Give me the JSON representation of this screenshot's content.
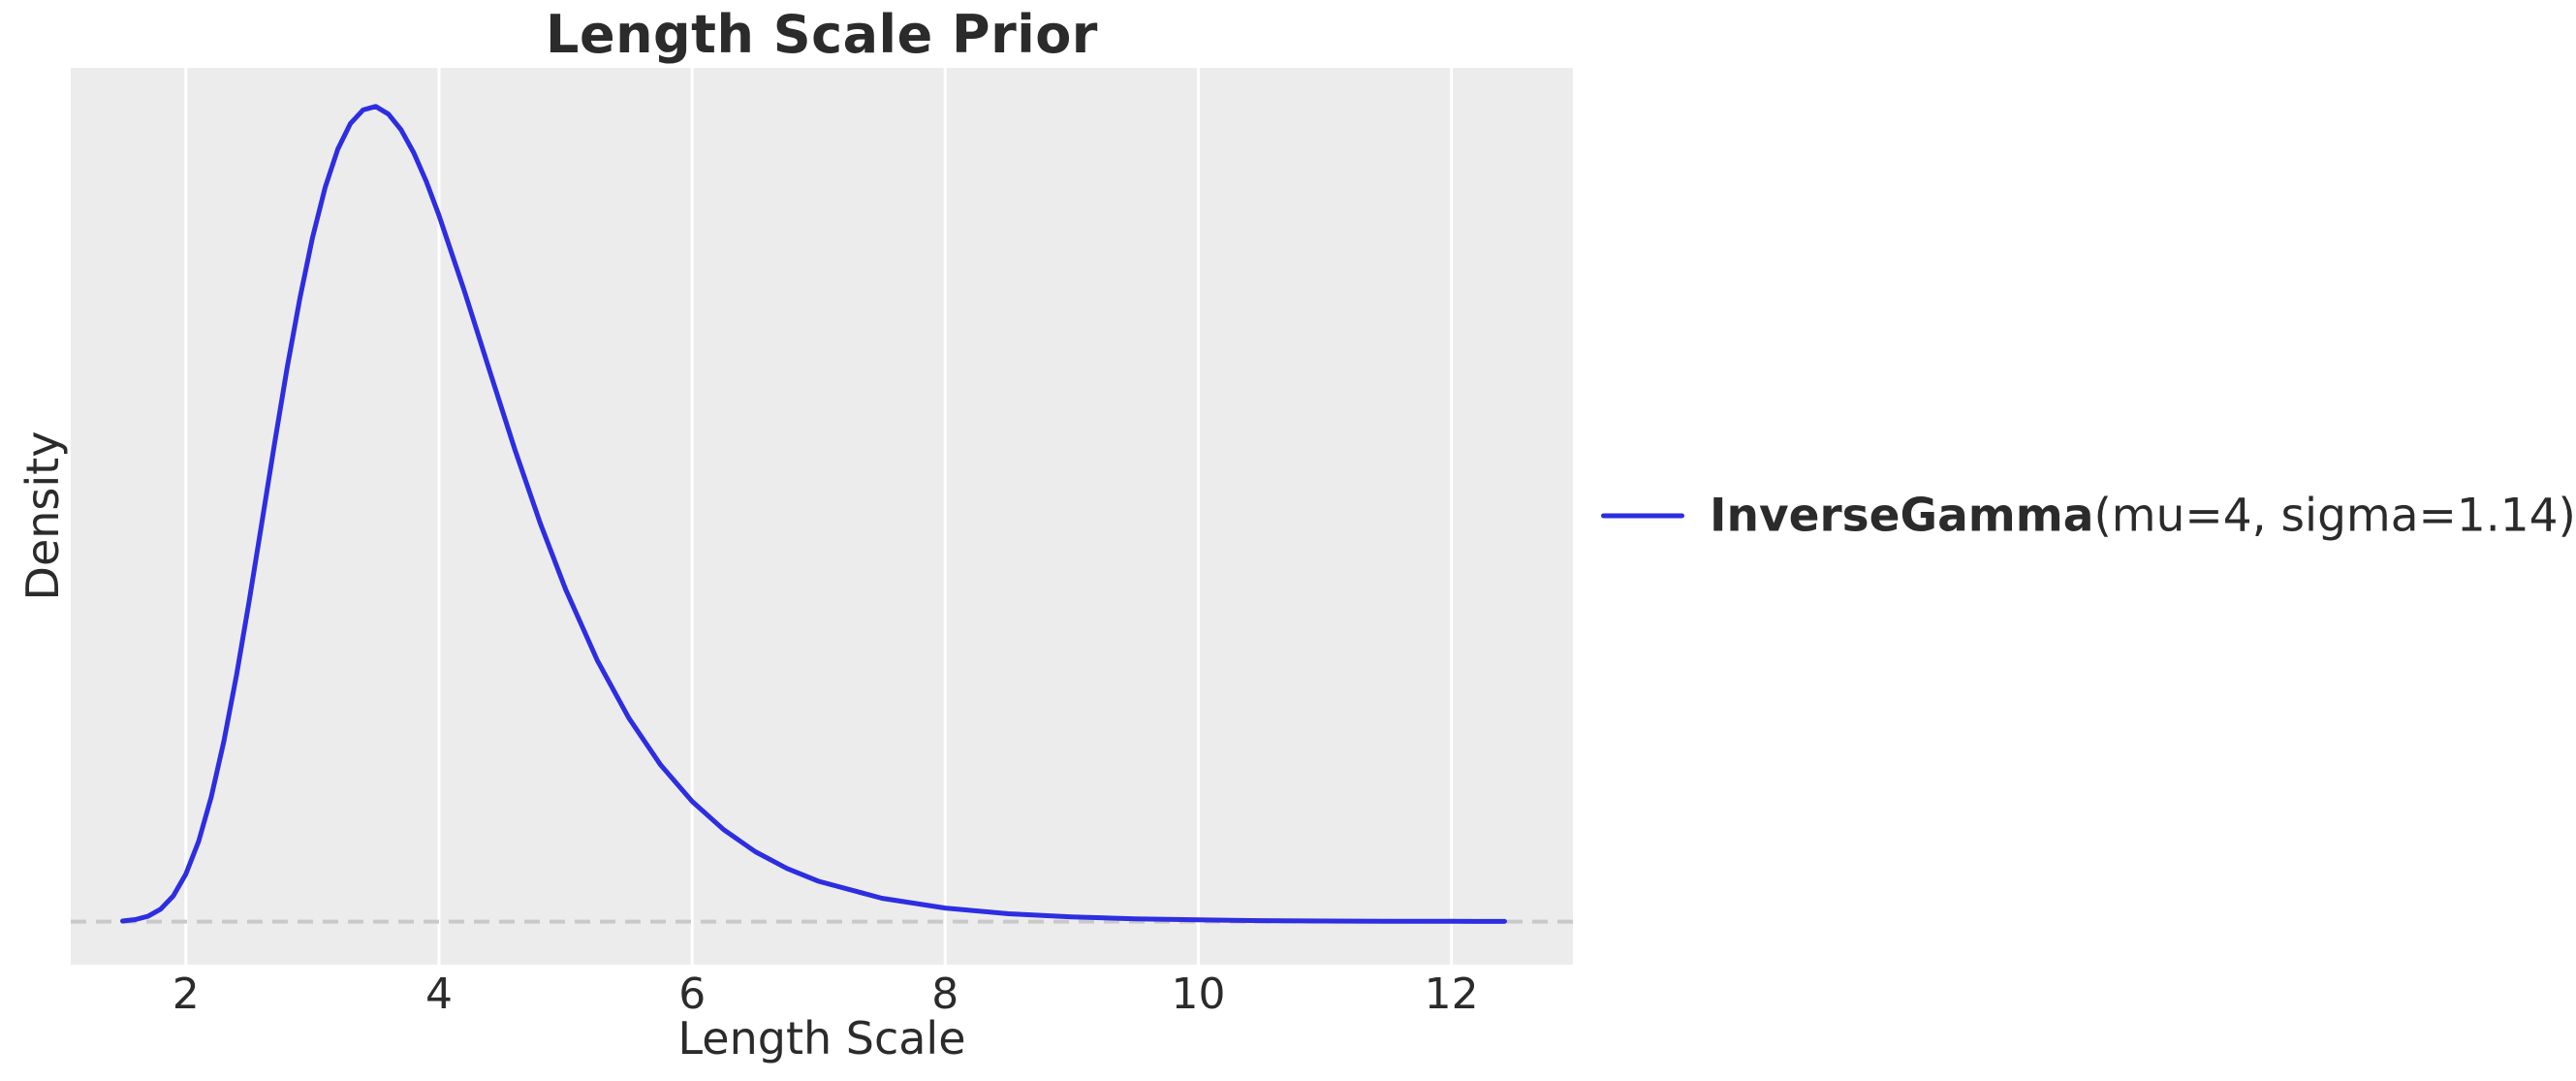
{
  "chart_data": {
    "type": "line",
    "title": "Length Scale Prior",
    "xlabel": "Length Scale",
    "ylabel": "Density",
    "x_ticks": [
      2,
      4,
      6,
      8,
      10,
      12
    ],
    "x_tick_labels": [
      "2",
      "4",
      "6",
      "8",
      "10",
      "12"
    ],
    "y_ticks": [],
    "xlim": [
      1.09,
      12.96
    ],
    "ylim": [
      -0.022,
      0.436
    ],
    "grid": "vertical-only, white lines on gray axes background",
    "legend_position": "center-right, outside axes",
    "series": [
      {
        "name": "InverseGamma(mu=4, sigma=1.14)",
        "label_bold": "InverseGamma",
        "label_regular": "(mu=4, sigma=1.14)",
        "color": "#2d2de2",
        "line_width": 5,
        "x": [
          1.5,
          1.6,
          1.7,
          1.8,
          1.9,
          2.0,
          2.1,
          2.2,
          2.3,
          2.4,
          2.5,
          2.6,
          2.7,
          2.8,
          2.9,
          3.0,
          3.1,
          3.2,
          3.3,
          3.4,
          3.5,
          3.6,
          3.7,
          3.8,
          3.9,
          4.0,
          4.2,
          4.4,
          4.6,
          4.8,
          5.0,
          5.25,
          5.5,
          5.75,
          6.0,
          6.25,
          6.5,
          6.75,
          7.0,
          7.5,
          8.0,
          8.5,
          9.0,
          9.5,
          10.0,
          10.5,
          11.0,
          11.5,
          12.0,
          12.42
        ],
        "y": [
          0.0003,
          0.001,
          0.0027,
          0.0063,
          0.0131,
          0.0243,
          0.0409,
          0.0635,
          0.0921,
          0.126,
          0.1637,
          0.2038,
          0.2439,
          0.2829,
          0.3182,
          0.3492,
          0.3749,
          0.3944,
          0.4076,
          0.4145,
          0.4163,
          0.4124,
          0.4044,
          0.3927,
          0.3779,
          0.3606,
          0.3221,
          0.2813,
          0.241,
          0.2034,
          0.1697,
          0.1335,
          0.1039,
          0.0801,
          0.0614,
          0.0469,
          0.0357,
          0.0271,
          0.0206,
          0.0119,
          0.0069,
          0.004,
          0.0024,
          0.0014,
          0.0009,
          0.0005,
          0.0003,
          0.0002,
          0.00013,
          8e-05
        ]
      }
    ],
    "reference_line": {
      "y": 0,
      "style": "dashed",
      "color": "#c9c9c9",
      "dash": [
        16,
        10
      ],
      "width": 4
    }
  },
  "styles": {
    "axes_background": "#ececec",
    "grid_color": "#ffffff",
    "text_color": "#2b2b2b",
    "figure_background": "#ffffff"
  }
}
